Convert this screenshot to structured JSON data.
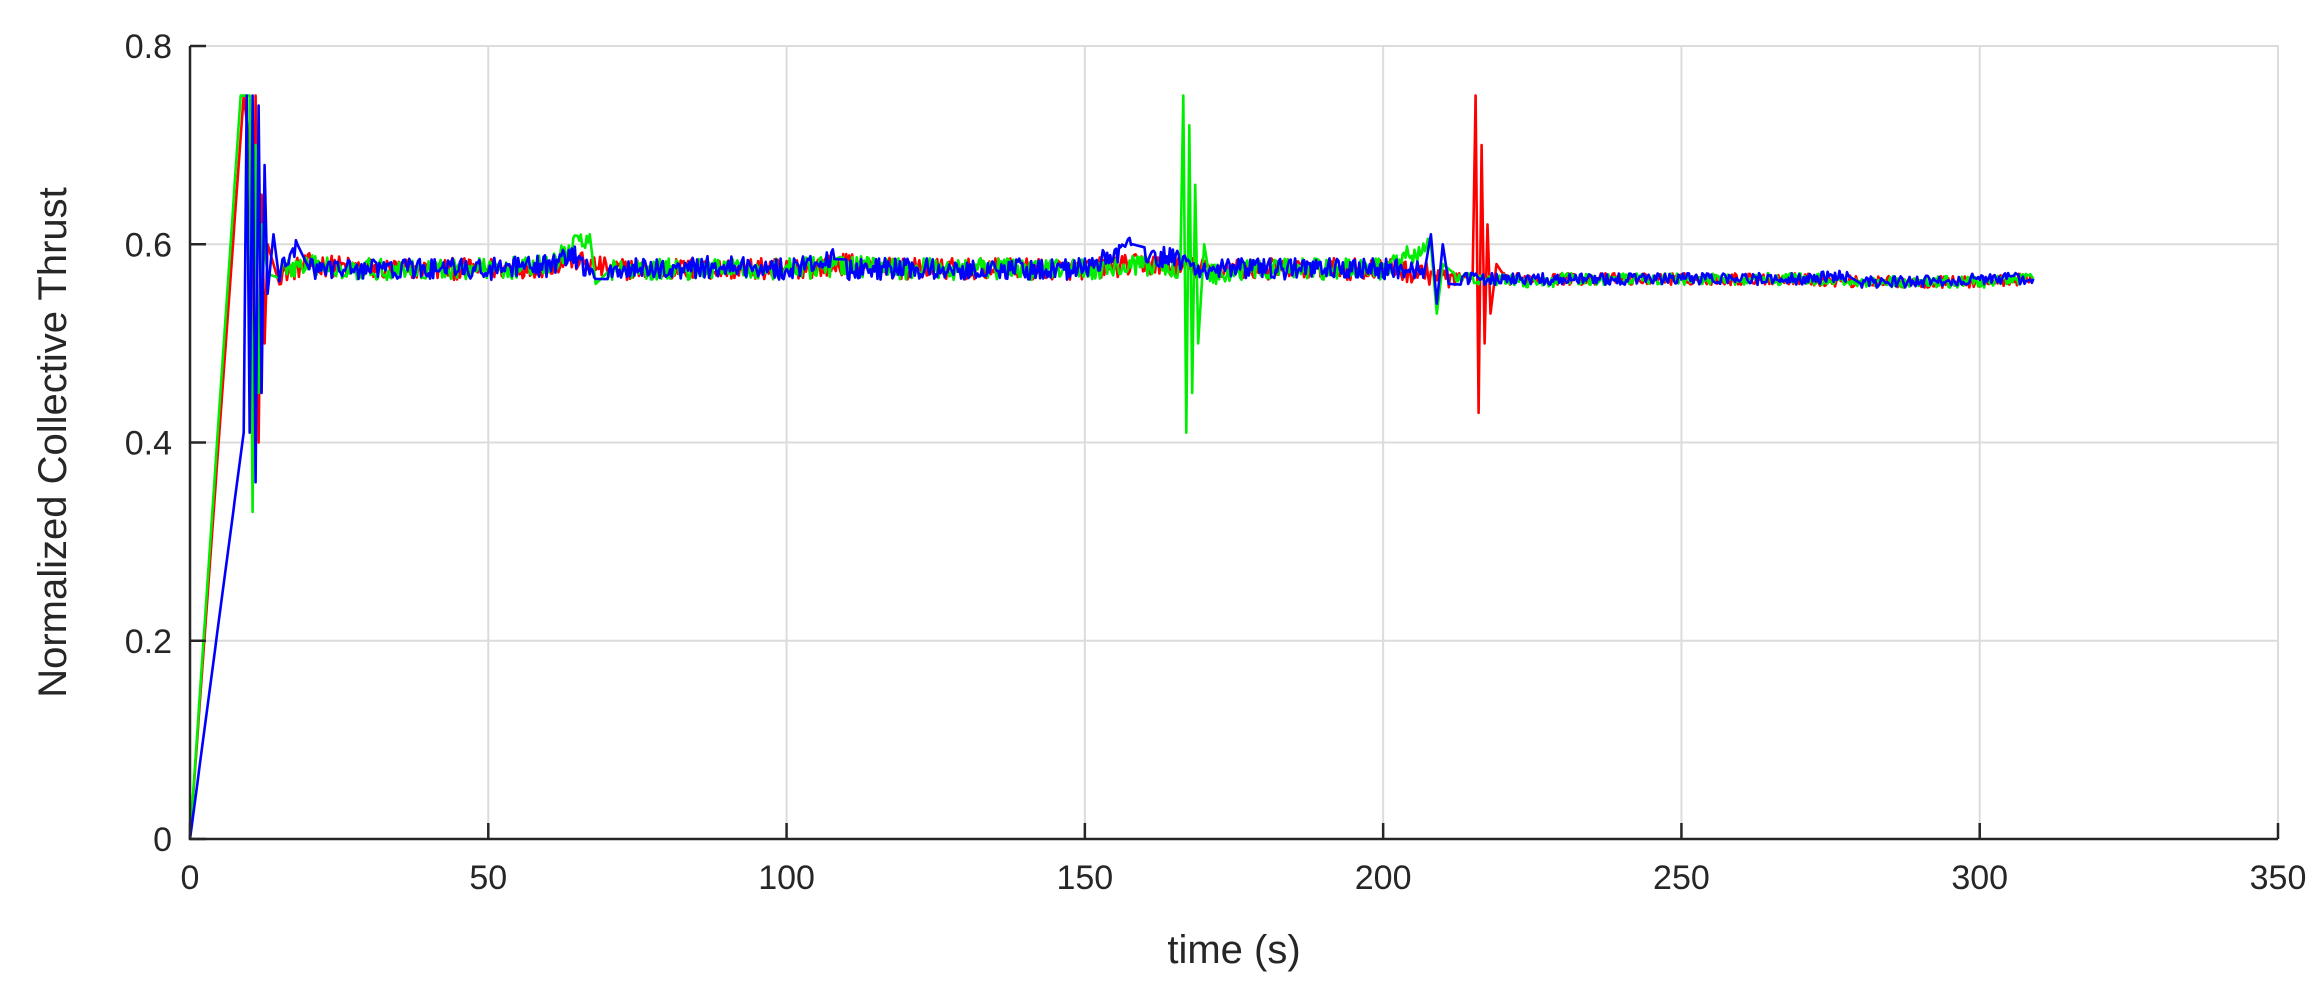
{
  "chart_data": {
    "type": "line",
    "title": "",
    "xlabel": "time (s)",
    "ylabel": "Normalized Collective Thrust",
    "xlim": [
      0,
      350
    ],
    "ylim": [
      0,
      0.8
    ],
    "x_ticks": [
      0,
      50,
      100,
      150,
      200,
      250,
      300,
      350
    ],
    "y_ticks": [
      0,
      0.2,
      0.4,
      0.6,
      0.8
    ],
    "x_tick_labels": [
      "0",
      "50",
      "100",
      "150",
      "200",
      "250",
      "300",
      "350"
    ],
    "y_tick_labels": [
      "0",
      "0.2",
      "0.4",
      "0.6",
      "0.8"
    ],
    "grid": true,
    "legend": "none",
    "series": [
      {
        "color": "#ff0000",
        "points": [
          [
            0,
            0
          ],
          [
            9,
            0.75
          ],
          [
            10,
            0.7
          ],
          [
            10.5,
            0.45
          ],
          [
            11,
            0.75
          ],
          [
            11.5,
            0.4
          ],
          [
            12,
            0.65
          ],
          [
            12.5,
            0.5
          ],
          [
            13,
            0.6
          ],
          [
            15,
            0.57
          ],
          [
            20,
            0.58
          ],
          [
            30,
            0.575
          ],
          [
            40,
            0.575
          ],
          [
            50,
            0.575
          ],
          [
            60,
            0.578
          ],
          [
            64,
            0.585
          ],
          [
            70,
            0.575
          ],
          [
            80,
            0.575
          ],
          [
            90,
            0.575
          ],
          [
            100,
            0.575
          ],
          [
            110,
            0.58
          ],
          [
            120,
            0.575
          ],
          [
            130,
            0.575
          ],
          [
            140,
            0.575
          ],
          [
            150,
            0.575
          ],
          [
            160,
            0.58
          ],
          [
            170,
            0.575
          ],
          [
            180,
            0.575
          ],
          [
            190,
            0.575
          ],
          [
            200,
            0.575
          ],
          [
            208,
            0.57
          ],
          [
            212,
            0.565
          ],
          [
            215,
            0.565
          ],
          [
            215.5,
            0.75
          ],
          [
            216,
            0.43
          ],
          [
            216.5,
            0.7
          ],
          [
            217,
            0.5
          ],
          [
            217.5,
            0.62
          ],
          [
            218,
            0.53
          ],
          [
            219,
            0.58
          ],
          [
            220,
            0.565
          ],
          [
            230,
            0.565
          ],
          [
            240,
            0.565
          ],
          [
            250,
            0.565
          ],
          [
            260,
            0.565
          ],
          [
            270,
            0.565
          ],
          [
            280,
            0.562
          ],
          [
            290,
            0.562
          ],
          [
            300,
            0.562
          ],
          [
            309,
            0.565
          ]
        ]
      },
      {
        "color": "#00ee00",
        "points": [
          [
            0,
            0
          ],
          [
            8.5,
            0.75
          ],
          [
            10,
            0.75
          ],
          [
            10.5,
            0.33
          ],
          [
            11,
            0.7
          ],
          [
            11.5,
            0.45
          ],
          [
            12,
            0.62
          ],
          [
            13,
            0.57
          ],
          [
            15,
            0.575
          ],
          [
            20,
            0.578
          ],
          [
            30,
            0.575
          ],
          [
            40,
            0.575
          ],
          [
            50,
            0.575
          ],
          [
            60,
            0.578
          ],
          [
            67,
            0.61
          ],
          [
            68,
            0.56
          ],
          [
            70,
            0.575
          ],
          [
            80,
            0.575
          ],
          [
            90,
            0.575
          ],
          [
            100,
            0.575
          ],
          [
            110,
            0.578
          ],
          [
            120,
            0.575
          ],
          [
            130,
            0.575
          ],
          [
            140,
            0.575
          ],
          [
            150,
            0.575
          ],
          [
            160,
            0.578
          ],
          [
            166,
            0.575
          ],
          [
            166.5,
            0.75
          ],
          [
            167,
            0.41
          ],
          [
            167.5,
            0.72
          ],
          [
            168,
            0.45
          ],
          [
            168.5,
            0.66
          ],
          [
            169,
            0.5
          ],
          [
            170,
            0.6
          ],
          [
            171,
            0.57
          ],
          [
            180,
            0.575
          ],
          [
            190,
            0.575
          ],
          [
            200,
            0.575
          ],
          [
            208,
            0.6
          ],
          [
            209,
            0.53
          ],
          [
            210,
            0.58
          ],
          [
            212,
            0.565
          ],
          [
            220,
            0.565
          ],
          [
            227,
            0.56
          ],
          [
            230,
            0.565
          ],
          [
            240,
            0.565
          ],
          [
            250,
            0.565
          ],
          [
            260,
            0.565
          ],
          [
            270,
            0.565
          ],
          [
            280,
            0.562
          ],
          [
            290,
            0.562
          ],
          [
            300,
            0.562
          ],
          [
            309,
            0.565
          ]
        ]
      },
      {
        "color": "#0000ff",
        "points": [
          [
            0,
            0
          ],
          [
            9,
            0.41
          ],
          [
            9.5,
            0.75
          ],
          [
            10,
            0.41
          ],
          [
            10.5,
            0.75
          ],
          [
            11,
            0.36
          ],
          [
            11.5,
            0.74
          ],
          [
            12,
            0.45
          ],
          [
            12.5,
            0.68
          ],
          [
            13,
            0.55
          ],
          [
            14,
            0.61
          ],
          [
            15,
            0.57
          ],
          [
            18,
            0.6
          ],
          [
            20,
            0.575
          ],
          [
            30,
            0.575
          ],
          [
            40,
            0.575
          ],
          [
            50,
            0.575
          ],
          [
            60,
            0.578
          ],
          [
            64,
            0.59
          ],
          [
            68,
            0.565
          ],
          [
            70,
            0.575
          ],
          [
            80,
            0.575
          ],
          [
            90,
            0.578
          ],
          [
            100,
            0.575
          ],
          [
            108,
            0.585
          ],
          [
            110,
            0.575
          ],
          [
            120,
            0.575
          ],
          [
            130,
            0.575
          ],
          [
            140,
            0.575
          ],
          [
            150,
            0.575
          ],
          [
            158,
            0.6
          ],
          [
            160,
            0.59
          ],
          [
            165,
            0.585
          ],
          [
            170,
            0.575
          ],
          [
            180,
            0.575
          ],
          [
            190,
            0.575
          ],
          [
            200,
            0.575
          ],
          [
            207,
            0.575
          ],
          [
            208,
            0.61
          ],
          [
            209,
            0.54
          ],
          [
            210,
            0.6
          ],
          [
            211,
            0.56
          ],
          [
            213,
            0.565
          ],
          [
            220,
            0.565
          ],
          [
            230,
            0.565
          ],
          [
            240,
            0.565
          ],
          [
            250,
            0.565
          ],
          [
            260,
            0.565
          ],
          [
            270,
            0.565
          ],
          [
            278,
            0.568
          ],
          [
            280,
            0.562
          ],
          [
            290,
            0.562
          ],
          [
            300,
            0.565
          ],
          [
            309,
            0.565
          ]
        ]
      }
    ]
  }
}
